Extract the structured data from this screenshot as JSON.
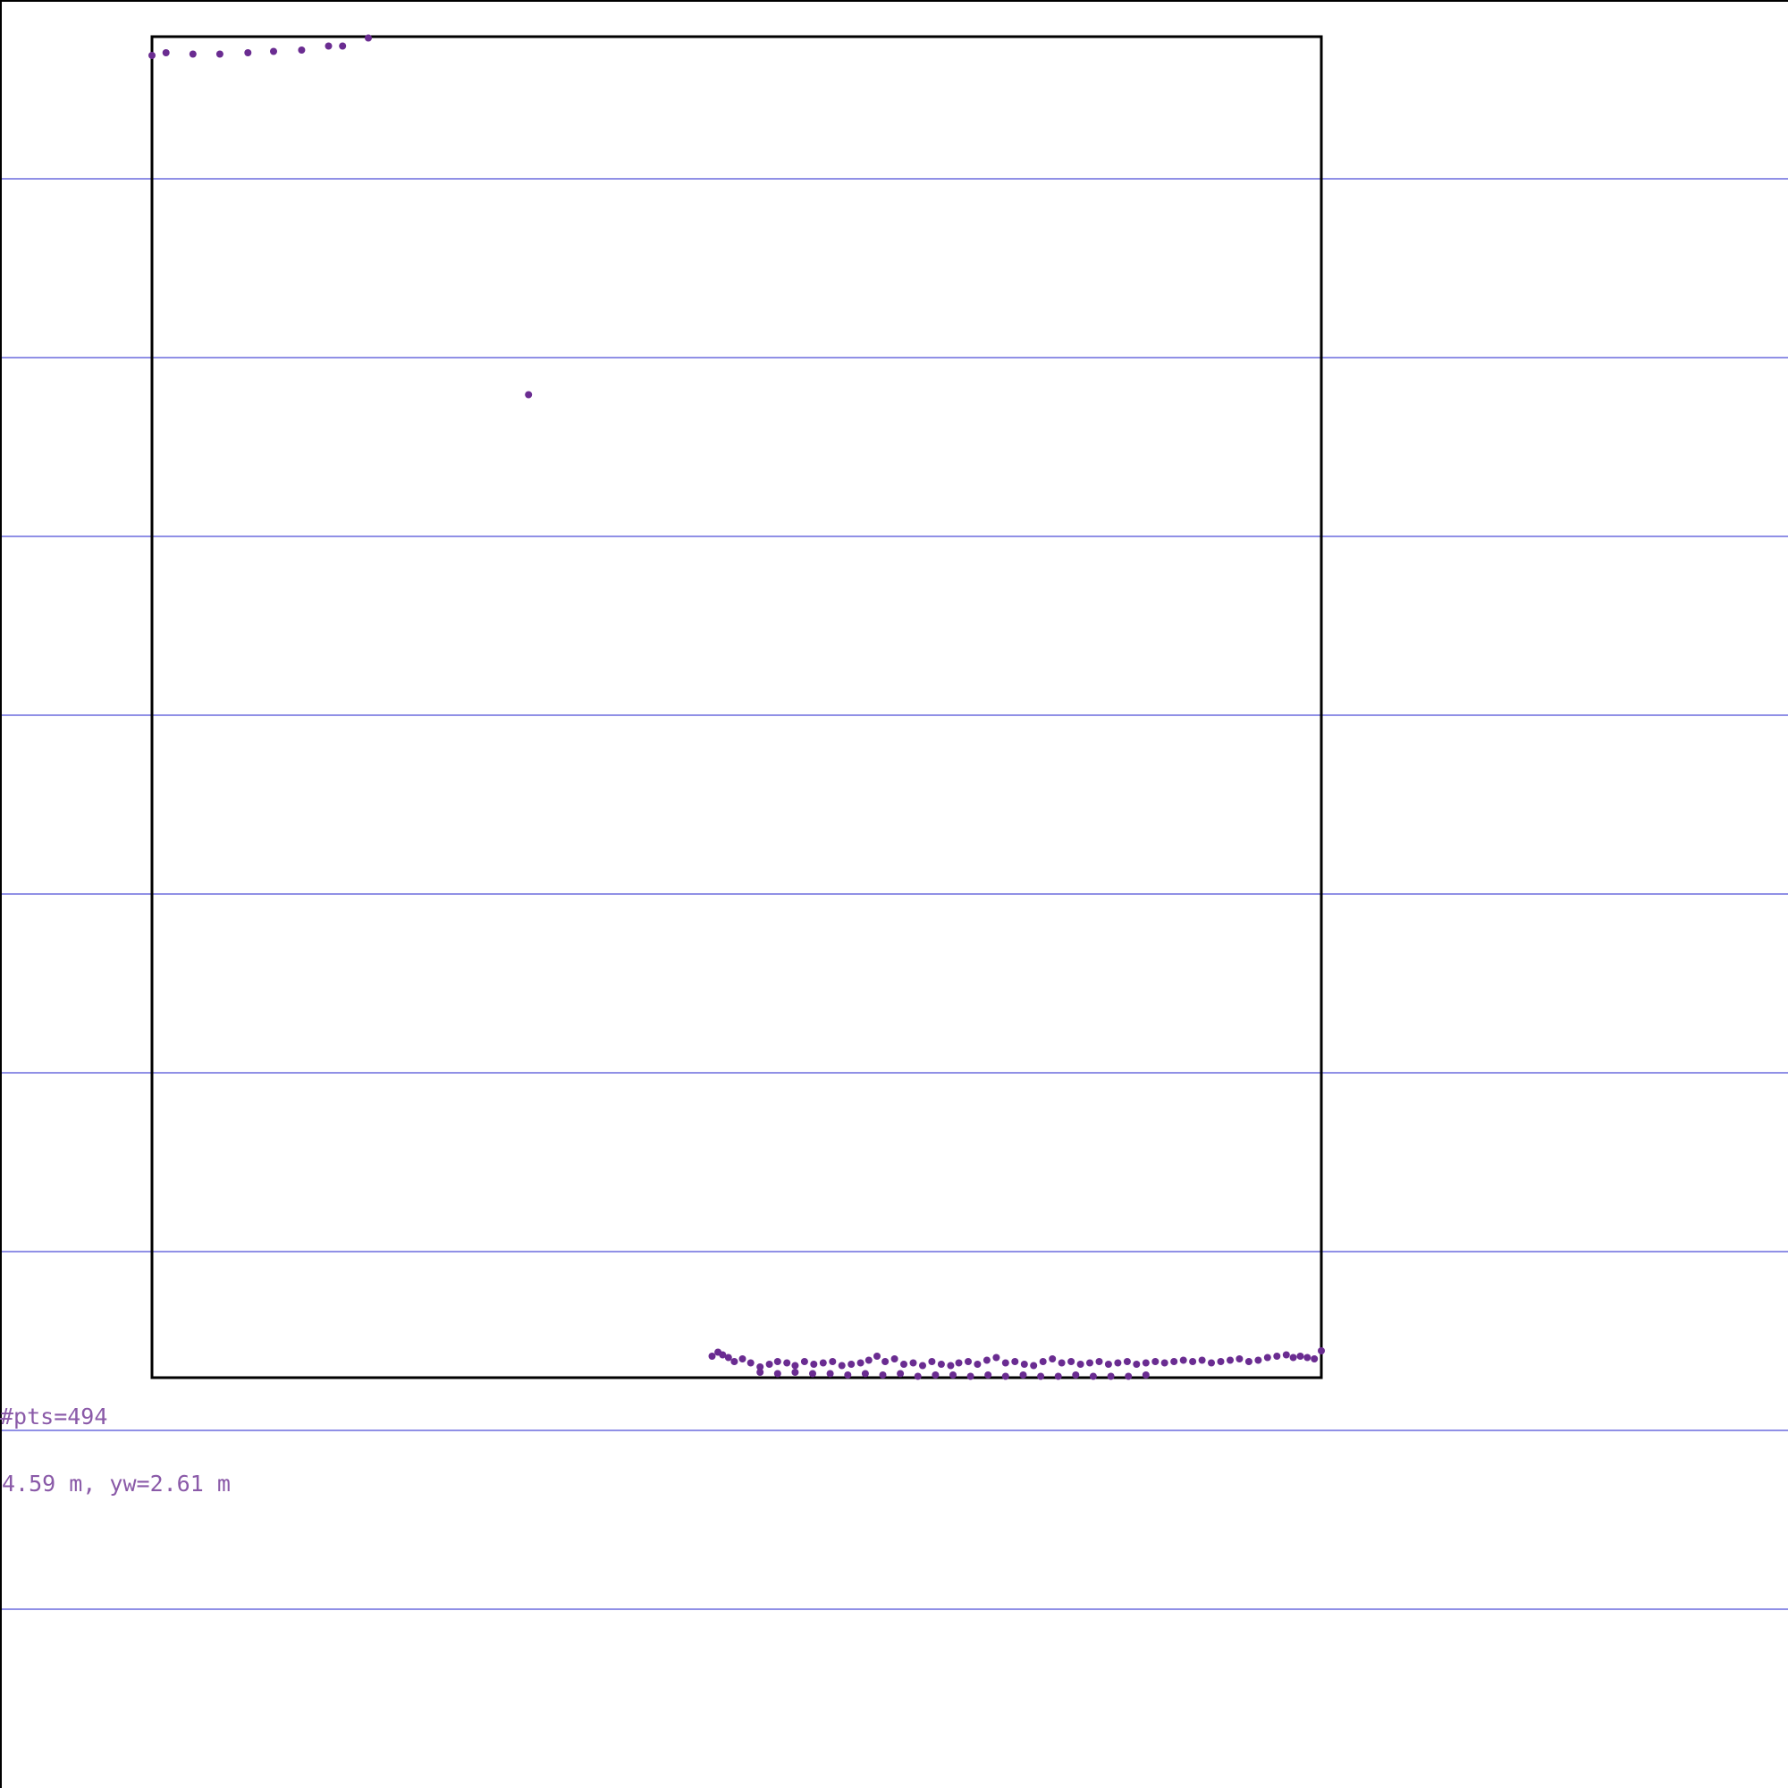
{
  "annotations": {
    "points_count": "#pts=494",
    "extent": "4.59 m, yw=2.61 m"
  },
  "colors": {
    "points": "#6a2c91",
    "gridlines": "#2222cc",
    "frame": "#000000",
    "text": "#8a5aa8",
    "background": "#ffffff"
  },
  "chart_data": {
    "type": "scatter",
    "title": "",
    "xlabel": "",
    "ylabel": "",
    "xlim": [
      0,
      1
    ],
    "ylim": [
      0,
      1
    ],
    "grid": "horizontal",
    "legend": "none",
    "series": [
      {
        "points": [
          [
            0.0,
            0.986
          ],
          [
            0.012,
            0.988
          ],
          [
            0.035,
            0.987
          ],
          [
            0.058,
            0.987
          ],
          [
            0.082,
            0.988
          ],
          [
            0.104,
            0.989
          ],
          [
            0.128,
            0.99
          ],
          [
            0.151,
            0.993
          ],
          [
            0.163,
            0.993
          ],
          [
            0.185,
            0.999
          ],
          [
            0.322,
            0.733
          ],
          [
            0.479,
            0.016
          ],
          [
            0.484,
            0.019
          ],
          [
            0.488,
            0.017
          ],
          [
            0.493,
            0.015
          ],
          [
            0.498,
            0.012
          ],
          [
            0.505,
            0.014
          ],
          [
            0.512,
            0.011
          ],
          [
            0.52,
            0.008
          ],
          [
            0.528,
            0.01
          ],
          [
            0.535,
            0.012
          ],
          [
            0.543,
            0.011
          ],
          [
            0.55,
            0.009
          ],
          [
            0.558,
            0.012
          ],
          [
            0.566,
            0.01
          ],
          [
            0.574,
            0.011
          ],
          [
            0.582,
            0.012
          ],
          [
            0.59,
            0.009
          ],
          [
            0.598,
            0.01
          ],
          [
            0.606,
            0.011
          ],
          [
            0.613,
            0.013
          ],
          [
            0.62,
            0.016
          ],
          [
            0.627,
            0.012
          ],
          [
            0.635,
            0.014
          ],
          [
            0.643,
            0.01
          ],
          [
            0.651,
            0.011
          ],
          [
            0.659,
            0.009
          ],
          [
            0.667,
            0.012
          ],
          [
            0.675,
            0.01
          ],
          [
            0.683,
            0.009
          ],
          [
            0.69,
            0.011
          ],
          [
            0.698,
            0.012
          ],
          [
            0.706,
            0.01
          ],
          [
            0.714,
            0.013
          ],
          [
            0.722,
            0.015
          ],
          [
            0.73,
            0.011
          ],
          [
            0.738,
            0.012
          ],
          [
            0.746,
            0.01
          ],
          [
            0.754,
            0.009
          ],
          [
            0.762,
            0.012
          ],
          [
            0.77,
            0.014
          ],
          [
            0.778,
            0.011
          ],
          [
            0.786,
            0.012
          ],
          [
            0.794,
            0.01
          ],
          [
            0.802,
            0.011
          ],
          [
            0.81,
            0.012
          ],
          [
            0.818,
            0.01
          ],
          [
            0.826,
            0.011
          ],
          [
            0.834,
            0.012
          ],
          [
            0.842,
            0.01
          ],
          [
            0.85,
            0.011
          ],
          [
            0.858,
            0.012
          ],
          [
            0.866,
            0.011
          ],
          [
            0.874,
            0.012
          ],
          [
            0.882,
            0.013
          ],
          [
            0.89,
            0.012
          ],
          [
            0.898,
            0.013
          ],
          [
            0.906,
            0.011
          ],
          [
            0.914,
            0.012
          ],
          [
            0.922,
            0.013
          ],
          [
            0.93,
            0.014
          ],
          [
            0.938,
            0.012
          ],
          [
            0.946,
            0.013
          ],
          [
            0.954,
            0.015
          ],
          [
            0.962,
            0.016
          ],
          [
            0.97,
            0.017
          ],
          [
            0.976,
            0.015
          ],
          [
            0.982,
            0.016
          ],
          [
            0.988,
            0.015
          ],
          [
            0.994,
            0.014
          ],
          [
            1.0,
            0.02
          ],
          [
            0.52,
            0.004
          ],
          [
            0.535,
            0.003
          ],
          [
            0.55,
            0.004
          ],
          [
            0.565,
            0.003
          ],
          [
            0.58,
            0.003
          ],
          [
            0.595,
            0.002
          ],
          [
            0.61,
            0.003
          ],
          [
            0.625,
            0.002
          ],
          [
            0.64,
            0.003
          ],
          [
            0.655,
            0.001
          ],
          [
            0.67,
            0.002
          ],
          [
            0.685,
            0.002
          ],
          [
            0.7,
            0.001
          ],
          [
            0.715,
            0.002
          ],
          [
            0.73,
            0.001
          ],
          [
            0.745,
            0.002
          ],
          [
            0.76,
            0.001
          ],
          [
            0.775,
            0.001
          ],
          [
            0.79,
            0.002
          ],
          [
            0.805,
            0.001
          ],
          [
            0.82,
            0.001
          ],
          [
            0.835,
            0.001
          ],
          [
            0.85,
            0.002
          ]
        ]
      }
    ]
  }
}
